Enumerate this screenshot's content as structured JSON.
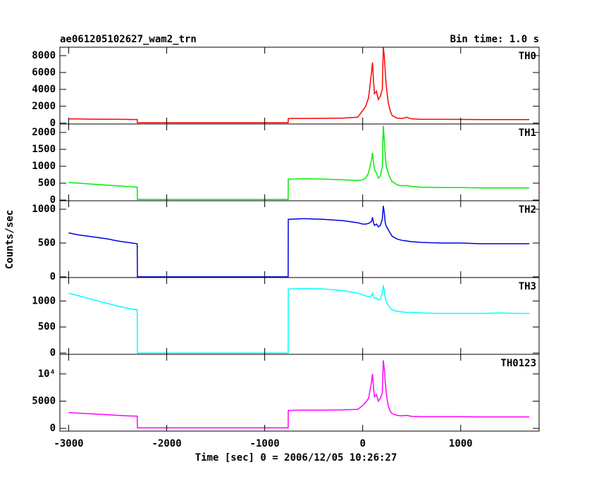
{
  "chart_data": {
    "type": "line",
    "title": "ae061205102627_wam2_trn",
    "subtitle": "Bin time: 1.0 s",
    "ylabel": "Counts/sec",
    "xlabel": "Time [sec] 0 = 2006/12/05 10:26:27",
    "xlim": [
      -3090,
      1800
    ],
    "xticks": [
      -3000,
      -2000,
      -1000,
      0,
      1000
    ],
    "x": [
      -3000,
      -2900,
      -2800,
      -2700,
      -2600,
      -2500,
      -2400,
      -2301,
      -2299,
      -2000,
      -1500,
      -1000,
      -761,
      -759,
      -600,
      -400,
      -200,
      -50,
      0,
      30,
      60,
      90,
      100,
      110,
      120,
      140,
      160,
      180,
      200,
      210,
      220,
      230,
      240,
      260,
      280,
      300,
      350,
      400,
      450,
      500,
      600,
      800,
      1000,
      1200,
      1400,
      1600,
      1700
    ],
    "series": [
      {
        "name": "TH0",
        "color": "#ff0000",
        "ylim": [
          -100,
          9000
        ],
        "yticks": [
          0,
          2000,
          4000,
          6000,
          8000
        ],
        "values": [
          500,
          490,
          480,
          470,
          460,
          450,
          440,
          430,
          50,
          50,
          50,
          50,
          50,
          550,
          560,
          570,
          600,
          700,
          1500,
          2000,
          3000,
          6000,
          7200,
          5000,
          3500,
          3800,
          2800,
          3200,
          4000,
          9000,
          8000,
          6000,
          4500,
          2500,
          1500,
          900,
          600,
          550,
          700,
          500,
          450,
          450,
          440,
          430,
          420,
          420,
          420
        ]
      },
      {
        "name": "TH1",
        "color": "#00ee00",
        "ylim": [
          -20,
          2250
        ],
        "yticks": [
          0,
          500,
          1000,
          1500,
          2000
        ],
        "values": [
          520,
          500,
          480,
          460,
          440,
          420,
          400,
          380,
          20,
          20,
          20,
          20,
          20,
          620,
          630,
          620,
          600,
          580,
          600,
          650,
          800,
          1200,
          1400,
          1100,
          900,
          800,
          650,
          700,
          1000,
          2200,
          1800,
          1300,
          1000,
          800,
          650,
          550,
          450,
          420,
          430,
          400,
          380,
          370,
          370,
          360,
          360,
          360,
          360
        ]
      },
      {
        "name": "TH2",
        "color": "#0000e0",
        "ylim": [
          -10,
          1125
        ],
        "yticks": [
          0,
          500,
          1000
        ],
        "values": [
          650,
          620,
          600,
          580,
          560,
          530,
          510,
          490,
          0,
          0,
          0,
          0,
          0,
          850,
          860,
          850,
          830,
          800,
          780,
          780,
          790,
          820,
          880,
          800,
          760,
          780,
          740,
          760,
          850,
          1050,
          950,
          800,
          750,
          700,
          650,
          600,
          560,
          540,
          530,
          520,
          510,
          500,
          500,
          490,
          490,
          490,
          490
        ]
      },
      {
        "name": "TH3",
        "color": "#00ffff",
        "ylim": [
          -25,
          1450
        ],
        "yticks": [
          0,
          500,
          1000
        ],
        "values": [
          1150,
          1100,
          1050,
          1000,
          950,
          900,
          860,
          830,
          0,
          0,
          0,
          0,
          0,
          1230,
          1240,
          1230,
          1200,
          1150,
          1120,
          1100,
          1080,
          1100,
          1150,
          1080,
          1050,
          1060,
          1020,
          1040,
          1150,
          1300,
          1200,
          1050,
          980,
          920,
          870,
          830,
          800,
          790,
          780,
          780,
          770,
          760,
          760,
          760,
          770,
          760,
          760
        ]
      },
      {
        "name": "TH0123",
        "color": "#ff00ff",
        "ylim": [
          -500,
          13600
        ],
        "yticks": [
          0,
          5000,
          {
            "value": 10000,
            "label": "10⁴"
          }
        ],
        "values": [
          2900,
          2800,
          2700,
          2600,
          2500,
          2400,
          2300,
          2250,
          100,
          100,
          100,
          100,
          100,
          3300,
          3350,
          3350,
          3400,
          3500,
          4200,
          4800,
          5500,
          8500,
          10000,
          7500,
          5800,
          6200,
          5000,
          5500,
          6500,
          12500,
          11000,
          8500,
          6500,
          4200,
          3200,
          2700,
          2400,
          2300,
          2400,
          2200,
          2150,
          2150,
          2150,
          2100,
          2100,
          2100,
          2100
        ]
      }
    ]
  }
}
